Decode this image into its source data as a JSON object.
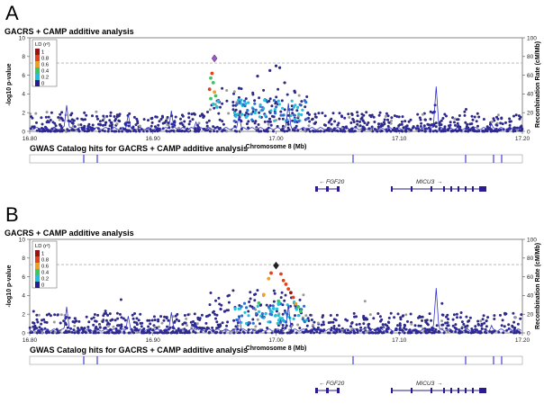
{
  "chart_data": [
    {
      "panel": "A",
      "type": "scatter",
      "title": "GACRS + CAMP additive analysis",
      "xlabel": "Chromosome 8 (Mb)",
      "ylabel": "-log10 p-value",
      "y2label": "Recombination Rate (cM/Mb)",
      "xlim": [
        16.8,
        17.2
      ],
      "ylim": [
        0,
        10
      ],
      "y2lim": [
        0,
        100
      ],
      "x_ticks": [
        "16.80",
        "16.90",
        "17.00",
        "17.10",
        "17.20"
      ],
      "y_ticks": [
        "0",
        "2",
        "4",
        "6",
        "8",
        "10"
      ],
      "y2_ticks": [
        "0",
        "20",
        "40",
        "60",
        "80",
        "100"
      ],
      "significance_line": 7.3,
      "lead_snp": {
        "x": 16.95,
        "y": 7.8,
        "color": "#9b59d0"
      },
      "highlight": [
        {
          "x": 16.948,
          "y": 6.2,
          "ld": 0.8
        },
        {
          "x": 16.947,
          "y": 5.7,
          "ld": 0.5
        },
        {
          "x": 16.949,
          "y": 5.2,
          "ld": 0.5
        },
        {
          "x": 16.946,
          "y": 4.5,
          "ld": 0.9
        },
        {
          "x": 16.95,
          "y": 4.2,
          "ld": 0.7
        },
        {
          "x": 16.951,
          "y": 3.8,
          "ld": 0.5
        },
        {
          "x": 16.947,
          "y": 3.5,
          "ld": 0.4
        },
        {
          "x": 16.953,
          "y": 3.2,
          "ld": 0.3
        },
        {
          "x": 16.949,
          "y": 2.9,
          "ld": 0.3
        },
        {
          "x": 16.952,
          "y": 2.6,
          "ld": 0.3
        }
      ],
      "legend": {
        "title": "LD (r²)",
        "entries": [
          "1",
          "0.8",
          "0.6",
          "0.4",
          "0.2",
          "0"
        ]
      },
      "gwas_title": "GWAS Catalog hits for GACRS + CAMP additive analysis",
      "genes": [
        {
          "name": "FGF20",
          "dir": "left"
        },
        {
          "name": "MICU3",
          "dir": "right"
        }
      ]
    },
    {
      "panel": "B",
      "type": "scatter",
      "title": "GACRS + CAMP additive analysis",
      "xlabel": "Chromosome 8 (Mb)",
      "ylabel": "-log10 p-value",
      "y2label": "Recombination Rate (cM/Mb)",
      "xlim": [
        16.8,
        17.2
      ],
      "ylim": [
        0,
        10
      ],
      "y2lim": [
        0,
        100
      ],
      "x_ticks": [
        "16.80",
        "16.90",
        "17.00",
        "17.10",
        "17.20"
      ],
      "y_ticks": [
        "0",
        "2",
        "4",
        "6",
        "8",
        "10"
      ],
      "y2_ticks": [
        "0",
        "20",
        "40",
        "60",
        "80",
        "100"
      ],
      "significance_line": 7.3,
      "lead_snp": {
        "x": 17.0,
        "y": 7.2,
        "color": "#222222"
      },
      "highlight": [
        {
          "x": 16.996,
          "y": 6.4,
          "ld": 0.9
        },
        {
          "x": 17.004,
          "y": 6.3,
          "ld": 0.85
        },
        {
          "x": 16.994,
          "y": 5.8,
          "ld": 0.7
        },
        {
          "x": 17.006,
          "y": 5.6,
          "ld": 0.8
        },
        {
          "x": 17.008,
          "y": 5.2,
          "ld": 0.9
        },
        {
          "x": 17.01,
          "y": 4.7,
          "ld": 0.9
        },
        {
          "x": 17.012,
          "y": 4.3,
          "ld": 0.95
        },
        {
          "x": 16.99,
          "y": 4.1,
          "ld": 0.6
        },
        {
          "x": 17.014,
          "y": 3.8,
          "ld": 0.8
        },
        {
          "x": 17.002,
          "y": 3.4,
          "ld": 0.5
        },
        {
          "x": 17.016,
          "y": 3.1,
          "ld": 0.7
        },
        {
          "x": 16.986,
          "y": 3.2,
          "ld": 0.4
        },
        {
          "x": 17.018,
          "y": 2.8,
          "ld": 0.5
        },
        {
          "x": 16.998,
          "y": 2.6,
          "ld": 0.35
        },
        {
          "x": 17.02,
          "y": 2.3,
          "ld": 0.4
        }
      ],
      "legend": {
        "title": "LD (r²)",
        "entries": [
          "1",
          "0.8",
          "0.6",
          "0.4",
          "0.2",
          "0"
        ]
      },
      "gwas_title": "GWAS Catalog hits for GACRS + CAMP additive analysis",
      "genes": [
        {
          "name": "FGF20",
          "dir": "left"
        },
        {
          "name": "MICU3",
          "dir": "right"
        }
      ]
    }
  ],
  "colors": {
    "ld_scale": [
      "#2a1c8c",
      "#2e6fcf",
      "#22c0d8",
      "#38c860",
      "#f0a020",
      "#e0431c",
      "#a01010"
    ],
    "background_snp": "#2e2a8a",
    "missing_ld": "#9a9a9a",
    "recomb_line": "#3030d0",
    "sig_line": "#b0b0b0"
  }
}
